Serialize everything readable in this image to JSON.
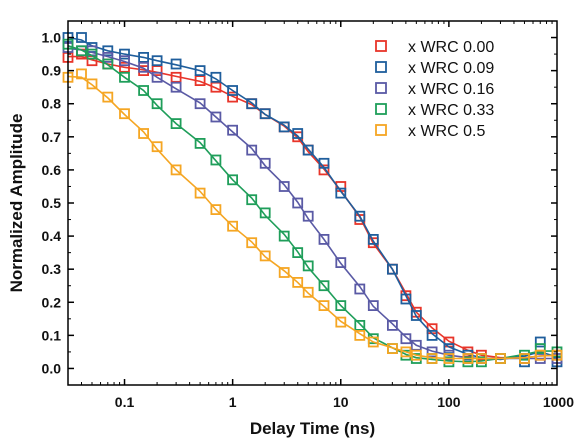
{
  "chart_data": {
    "type": "scatter",
    "title": "",
    "xlabel": "Delay Time (ns)",
    "ylabel": "Normalized Amplitude",
    "x_scale": "log",
    "xlim": [
      0.03,
      1000
    ],
    "ylim": [
      -0.05,
      1.05
    ],
    "x_tick_labels": [
      "0.1",
      "1",
      "10",
      "100",
      "1000"
    ],
    "x_tick_values": [
      0.1,
      1,
      10,
      100,
      1000
    ],
    "y_tick_labels": [
      "0.0",
      "0.1",
      "0.2",
      "0.3",
      "0.4",
      "0.5",
      "0.6",
      "0.7",
      "0.8",
      "0.9",
      "1.0"
    ],
    "y_tick_values": [
      0,
      0.1,
      0.2,
      0.3,
      0.4,
      0.5,
      0.6,
      0.7,
      0.8,
      0.9,
      1.0
    ],
    "grid": false,
    "legend_position": "top-right",
    "marker": "open-square",
    "fit_lines": true,
    "series": [
      {
        "name": "x WRC 0.00",
        "color": "#e8352a",
        "x": [
          0.03,
          0.04,
          0.05,
          0.07,
          0.1,
          0.15,
          0.2,
          0.3,
          0.5,
          0.7,
          1,
          1.5,
          2,
          3,
          4,
          5,
          7,
          10,
          15,
          20,
          30,
          40,
          50,
          70,
          100,
          150,
          200,
          300,
          500,
          700,
          1000
        ],
        "y": [
          0.94,
          0.95,
          0.93,
          0.92,
          0.91,
          0.9,
          0.9,
          0.88,
          0.87,
          0.85,
          0.82,
          0.8,
          0.77,
          0.73,
          0.7,
          0.66,
          0.6,
          0.55,
          0.45,
          0.38,
          0.3,
          0.22,
          0.17,
          0.12,
          0.08,
          0.05,
          0.04,
          0.03,
          0.03,
          0.04,
          0.04
        ]
      },
      {
        "name": "x WRC 0.09",
        "color": "#1f5e9c",
        "x": [
          0.03,
          0.04,
          0.05,
          0.07,
          0.1,
          0.15,
          0.2,
          0.3,
          0.5,
          0.7,
          1,
          1.5,
          2,
          3,
          4,
          5,
          7,
          10,
          15,
          20,
          30,
          40,
          50,
          70,
          100,
          150,
          200,
          300,
          500,
          700,
          1000
        ],
        "y": [
          1.0,
          1.0,
          0.97,
          0.96,
          0.95,
          0.94,
          0.93,
          0.92,
          0.9,
          0.88,
          0.84,
          0.8,
          0.77,
          0.73,
          0.71,
          0.66,
          0.62,
          0.53,
          0.46,
          0.39,
          0.3,
          0.21,
          0.16,
          0.1,
          0.06,
          0.04,
          0.03,
          0.03,
          0.02,
          0.08,
          0.02
        ]
      },
      {
        "name": "x WRC 0.16",
        "color": "#5a5aa5",
        "x": [
          0.03,
          0.04,
          0.05,
          0.07,
          0.1,
          0.15,
          0.2,
          0.3,
          0.5,
          0.7,
          1,
          1.5,
          2,
          3,
          4,
          5,
          7,
          10,
          15,
          20,
          30,
          40,
          50,
          70,
          100,
          150,
          200,
          300,
          500,
          700,
          1000
        ],
        "y": [
          0.97,
          0.96,
          0.96,
          0.94,
          0.93,
          0.91,
          0.88,
          0.85,
          0.8,
          0.76,
          0.72,
          0.66,
          0.62,
          0.55,
          0.5,
          0.46,
          0.39,
          0.32,
          0.24,
          0.19,
          0.13,
          0.09,
          0.07,
          0.05,
          0.04,
          0.03,
          0.03,
          0.03,
          0.03,
          0.03,
          0.03
        ]
      },
      {
        "name": "x WRC 0.33",
        "color": "#1f9e5a",
        "x": [
          0.03,
          0.04,
          0.05,
          0.07,
          0.1,
          0.15,
          0.2,
          0.3,
          0.5,
          0.7,
          1,
          1.5,
          2,
          3,
          4,
          5,
          7,
          10,
          15,
          20,
          30,
          40,
          50,
          70,
          100,
          150,
          200,
          300,
          500,
          700,
          1000
        ],
        "y": [
          0.98,
          0.96,
          0.95,
          0.92,
          0.88,
          0.84,
          0.8,
          0.74,
          0.68,
          0.63,
          0.57,
          0.51,
          0.47,
          0.4,
          0.35,
          0.31,
          0.25,
          0.19,
          0.13,
          0.09,
          0.06,
          0.04,
          0.03,
          0.03,
          0.02,
          0.02,
          0.02,
          0.03,
          0.04,
          0.06,
          0.05
        ]
      },
      {
        "name": "x WRC 0.5",
        "color": "#f5a623",
        "x": [
          0.03,
          0.04,
          0.05,
          0.07,
          0.1,
          0.15,
          0.2,
          0.3,
          0.5,
          0.7,
          1,
          1.5,
          2,
          3,
          4,
          5,
          7,
          10,
          15,
          20,
          30,
          40,
          50,
          70,
          100,
          150,
          200,
          300,
          500,
          700,
          1000
        ],
        "y": [
          0.88,
          0.89,
          0.86,
          0.82,
          0.77,
          0.71,
          0.67,
          0.6,
          0.53,
          0.48,
          0.43,
          0.38,
          0.34,
          0.29,
          0.26,
          0.23,
          0.19,
          0.14,
          0.1,
          0.08,
          0.06,
          0.05,
          0.04,
          0.03,
          0.03,
          0.03,
          0.03,
          0.03,
          0.03,
          0.04,
          0.04
        ]
      }
    ]
  }
}
